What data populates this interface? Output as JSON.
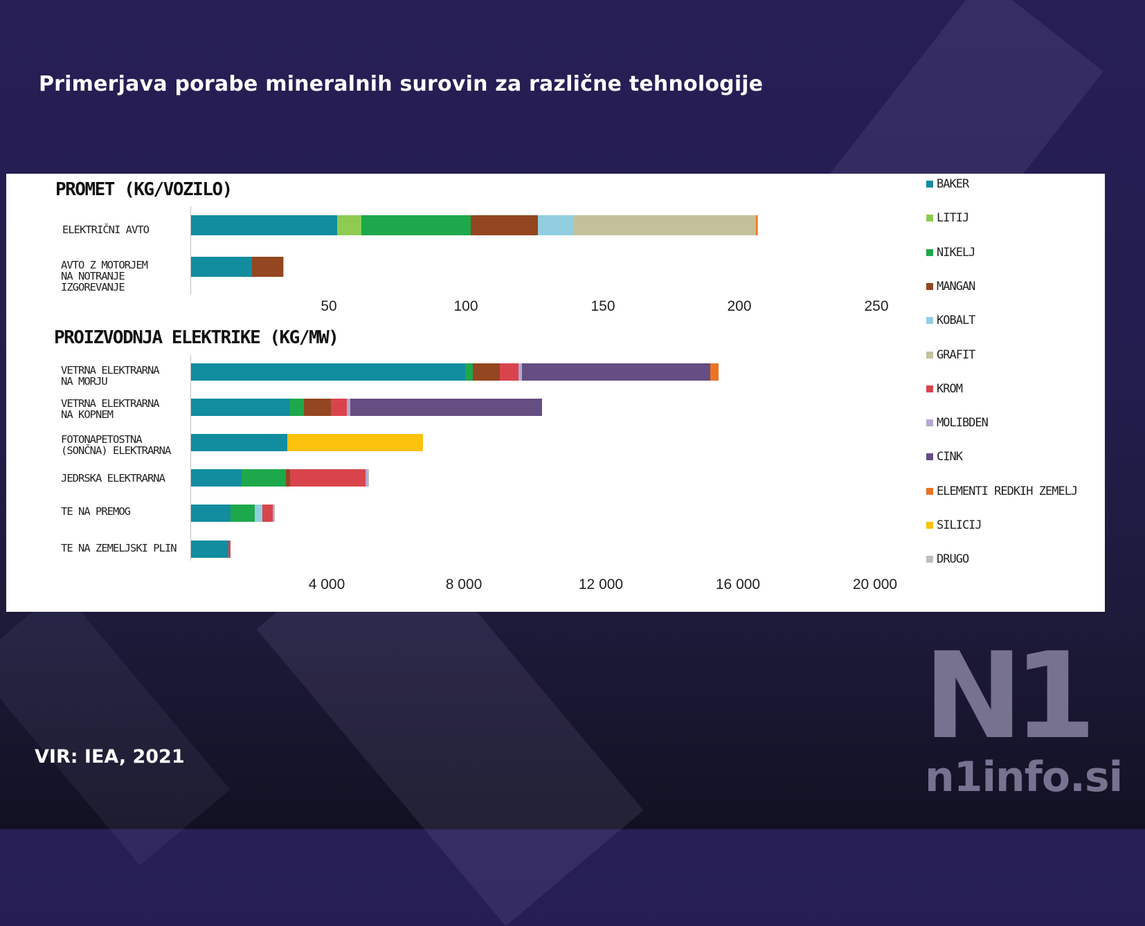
{
  "page_title": "Primerjava porabe mineralnih surovin za različne tehnologije",
  "source": "VIR: IEA, 2021",
  "logo": {
    "mark": "N1",
    "site": "n1info.si"
  },
  "colors": {
    "BAKER": "#128c9f",
    "LITIJ": "#8fcb52",
    "NIKELJ": "#1ea84c",
    "MANGAN": "#93461f",
    "KOBALT": "#91cfe0",
    "GRAFIT": "#c4c09a",
    "KROM": "#d9444c",
    "MOLIBDEN": "#b6a7cf",
    "CINK": "#654e82",
    "ELEMENTI REDKIH ZEMELJ": "#eb7324",
    "SILICIJ": "#fcc20e",
    "DRUGO": "#bfbfbf"
  },
  "legend": [
    "BAKER",
    "LITIJ",
    "NIKELJ",
    "MANGAN",
    "KOBALT",
    "GRAFIT",
    "KROM",
    "MOLIBDEN",
    "CINK",
    "ELEMENTI REDKIH ZEMELJ",
    "SILICIJ",
    "DRUGO"
  ],
  "chart_data": [
    {
      "type": "bar",
      "orientation": "horizontal",
      "stacked": true,
      "title": "PROMET (KG/VOZILO)",
      "xlim": [
        0,
        260
      ],
      "xticks": [
        50,
        100,
        150,
        200,
        250
      ],
      "xtick_labels": [
        "50",
        "100",
        "150",
        "200",
        "250"
      ],
      "categories": [
        "ELEKTRIČNI AVTO",
        "AVTO Z MOTORJEM\nNA NOTRANJE\nIZGOREVANJE"
      ],
      "series": [
        {
          "name": "BAKER",
          "values": [
            53.2,
            22.3
          ]
        },
        {
          "name": "LITIJ",
          "values": [
            8.9,
            0
          ]
        },
        {
          "name": "NIKELJ",
          "values": [
            39.9,
            0
          ]
        },
        {
          "name": "MANGAN",
          "values": [
            24.5,
            11.2
          ]
        },
        {
          "name": "KOBALT",
          "values": [
            13.3,
            0
          ]
        },
        {
          "name": "GRAFIT",
          "values": [
            66.3,
            0
          ]
        },
        {
          "name": "ELEMENTI REDKIH ZEMELJ",
          "values": [
            0.5,
            0
          ]
        },
        {
          "name": "DRUGO",
          "values": [
            0.3,
            0.3
          ]
        }
      ]
    },
    {
      "type": "bar",
      "orientation": "horizontal",
      "stacked": true,
      "title": "PROIZVODNJA ELEKTRIKE (KG/MW)",
      "xlim": [
        0,
        21000
      ],
      "xticks": [
        4000,
        8000,
        12000,
        16000,
        20000
      ],
      "xtick_labels": [
        "4 000",
        "8 000",
        "12 000",
        "16 000",
        "20 000"
      ],
      "categories": [
        "VETRNA ELEKTRARNA\nNA MORJU",
        "VETRNA ELEKTRARNA\nNA KOPNEM",
        "FOTONAPETOSTNA\n(SONČNA) ELEKTRARNA",
        "JEDRSKA ELEKTRARNA",
        "TE NA PREMOG",
        "TE NA ZEMELJSKI PLIN"
      ],
      "series": [
        {
          "name": "BAKER",
          "values": [
            8000,
            2900,
            2820,
            1470,
            1150,
            1100
          ]
        },
        {
          "name": "NIKELJ",
          "values": [
            240,
            400,
            0,
            1300,
            720,
            0
          ]
        },
        {
          "name": "MANGAN",
          "values": [
            790,
            780,
            0,
            130,
            0,
            0
          ]
        },
        {
          "name": "KOBALT",
          "values": [
            0,
            0,
            0,
            0,
            210,
            0
          ]
        },
        {
          "name": "KROM",
          "values": [
            530,
            470,
            0,
            2190,
            300,
            60
          ]
        },
        {
          "name": "MOLIBDEN",
          "values": [
            110,
            100,
            0,
            70,
            40,
            0
          ]
        },
        {
          "name": "CINK",
          "values": [
            5500,
            5600,
            0,
            0,
            0,
            0
          ]
        },
        {
          "name": "ELEMENTI REDKIH ZEMELJ",
          "values": [
            240,
            0,
            0,
            0,
            0,
            0
          ]
        },
        {
          "name": "SILICIJ",
          "values": [
            0,
            0,
            3950,
            0,
            0,
            0
          ]
        },
        {
          "name": "DRUGO",
          "values": [
            0,
            0,
            0,
            40,
            30,
            0
          ]
        }
      ]
    }
  ]
}
